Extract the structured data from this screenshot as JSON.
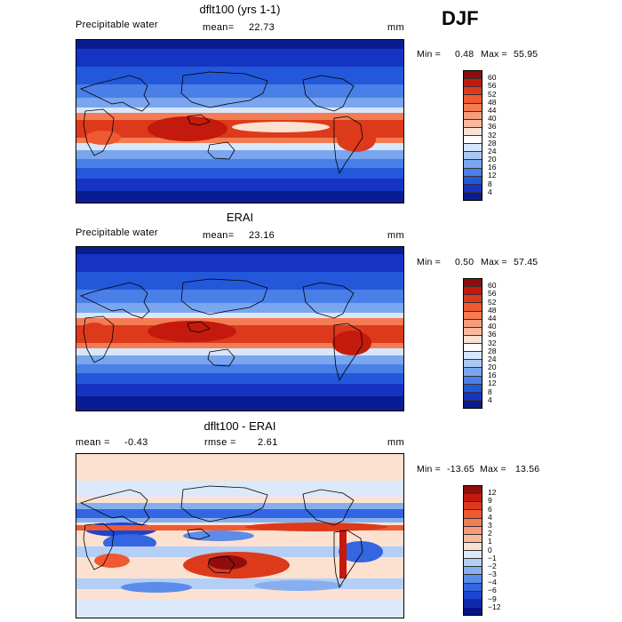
{
  "season": "DJF",
  "panels": [
    {
      "title": "dflt100 (yrs 1-1)",
      "left_label": "Precipitable water",
      "center_label": "mean=",
      "center_value": "22.73",
      "right_label": "mm",
      "min_label": "Min =",
      "min_value": "0.48",
      "max_label": "Max =",
      "max_value": "55.95"
    },
    {
      "title": "ERAI",
      "left_label": "Precipitable water",
      "center_label": "mean=",
      "center_value": "23.16",
      "right_label": "mm",
      "min_label": "Min =",
      "min_value": "0.50",
      "max_label": "Max =",
      "max_value": "57.45"
    },
    {
      "title": "dflt100 - ERAI",
      "left_label": "mean =",
      "left_value": "-0.43",
      "center_label": "rmse =",
      "center_value": "2.61",
      "right_label": "mm",
      "min_label": "Min =",
      "min_value": "-13.65",
      "max_label": "Max =",
      "max_value": "13.56"
    }
  ],
  "colorbars": {
    "abs": {
      "labels": [
        "60",
        "56",
        "52",
        "48",
        "44",
        "40",
        "36",
        "32",
        "28",
        "24",
        "20",
        "16",
        "12",
        "8",
        "4"
      ],
      "colors": [
        "#8e0e0e",
        "#c41a0e",
        "#dd3a1c",
        "#ef5a33",
        "#f47c54",
        "#f79c7a",
        "#fab99e",
        "#fde1d0",
        "#ffffff",
        "#d7e6fb",
        "#a9c9f5",
        "#7aa6ef",
        "#4a7fe7",
        "#2358db",
        "#1534c4",
        "#0a1c92"
      ]
    },
    "diff": {
      "labels": [
        "12",
        "9",
        "6",
        "4",
        "3",
        "2",
        "1",
        "0",
        "−1",
        "−2",
        "−3",
        "−4",
        "−6",
        "−9",
        "−12"
      ],
      "colors": [
        "#8e0e0e",
        "#c41a0e",
        "#dd3a1c",
        "#ef5a33",
        "#f47c54",
        "#f79c7a",
        "#fab99e",
        "#fde1d0",
        "#dbe9fb",
        "#b3cff6",
        "#86aff0",
        "#5b8ce9",
        "#3366e0",
        "#1b45d1",
        "#0e28b0",
        "#061380"
      ]
    }
  },
  "chart_data": [
    {
      "type": "heatmap",
      "title": "dflt100 (yrs 1-1)",
      "subtitle": "Precipitable water",
      "units": "mm",
      "mean": 22.73,
      "min": 0.48,
      "max": 55.95,
      "levels": [
        4,
        8,
        12,
        16,
        20,
        24,
        28,
        32,
        36,
        40,
        44,
        48,
        52,
        56,
        60
      ],
      "pattern": "tropical"
    },
    {
      "type": "heatmap",
      "title": "ERAI",
      "subtitle": "Precipitable water",
      "units": "mm",
      "mean": 23.16,
      "min": 0.5,
      "max": 57.45,
      "levels": [
        4,
        8,
        12,
        16,
        20,
        24,
        28,
        32,
        36,
        40,
        44,
        48,
        52,
        56,
        60
      ],
      "pattern": "tropical"
    },
    {
      "type": "heatmap",
      "title": "dflt100 - ERAI",
      "units": "mm",
      "mean": -0.43,
      "rmse": 2.61,
      "min": -13.65,
      "max": 13.56,
      "levels": [
        -12,
        -9,
        -6,
        -4,
        -3,
        -2,
        -1,
        0,
        1,
        2,
        3,
        4,
        6,
        9,
        12
      ],
      "pattern": "difference"
    }
  ]
}
